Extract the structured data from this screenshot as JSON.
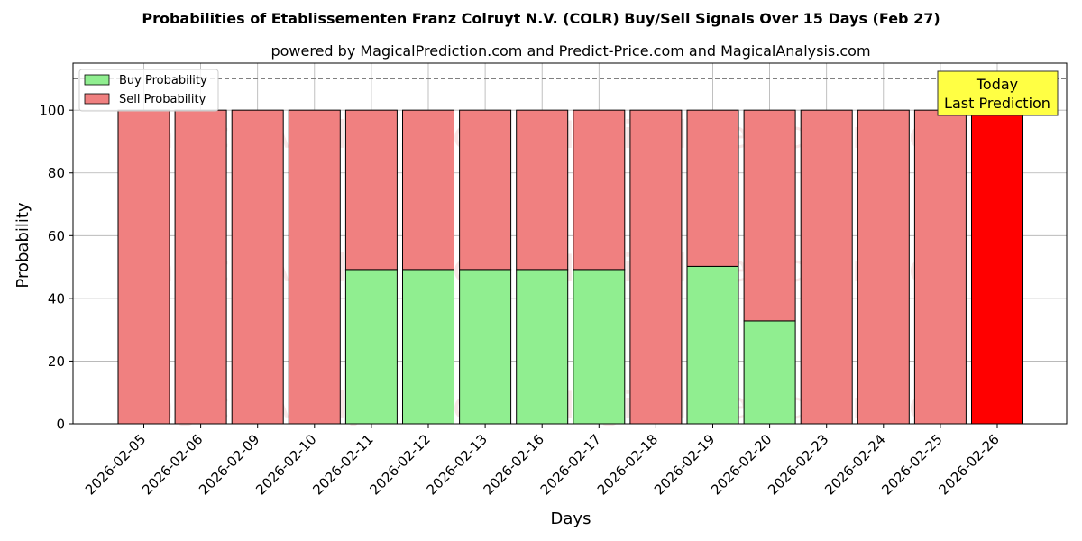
{
  "chart_data": {
    "type": "bar",
    "stacked": true,
    "title": "Probabilities of Etablissementen Franz Colruyt N.V. (COLR) Buy/Sell Signals Over 15 Days (Feb 27)",
    "subtitle": "powered by MagicalPrediction.com and Predict-Price.com and MagicalAnalysis.com",
    "xlabel": "Days",
    "ylabel": "Probability",
    "ylim": [
      0,
      115
    ],
    "yticks": [
      0,
      20,
      40,
      60,
      80,
      100
    ],
    "reference_line": 110,
    "grid": true,
    "legend_position": "top-left",
    "categories": [
      "2026-02-05",
      "2026-02-06",
      "2026-02-09",
      "2026-02-10",
      "2026-02-11",
      "2026-02-12",
      "2026-02-13",
      "2026-02-16",
      "2026-02-17",
      "2026-02-18",
      "2026-02-19",
      "2026-02-20",
      "2026-02-23",
      "2026-02-24",
      "2026-02-25",
      "2026-02-26"
    ],
    "series": [
      {
        "name": "Buy Probability",
        "color": "#90EE90",
        "values": [
          0,
          0,
          0,
          0,
          49.2,
          49.2,
          49.2,
          49.2,
          49.2,
          0,
          50.2,
          32.8,
          0,
          0,
          0,
          0
        ]
      },
      {
        "name": "Sell Probability",
        "color": "#F08080",
        "values": [
          100,
          100,
          100,
          100,
          50.8,
          50.8,
          50.8,
          50.8,
          50.8,
          100,
          49.8,
          67.2,
          100,
          100,
          100,
          100
        ]
      }
    ],
    "highlight": {
      "index": 15,
      "color": "#FF0000"
    },
    "annotation": {
      "line1": "Today",
      "line2": "Last Prediction",
      "background": "#FFFF44"
    },
    "watermarks": [
      "MagicalAnalysis.com",
      "MagicalPrediction.com"
    ]
  }
}
